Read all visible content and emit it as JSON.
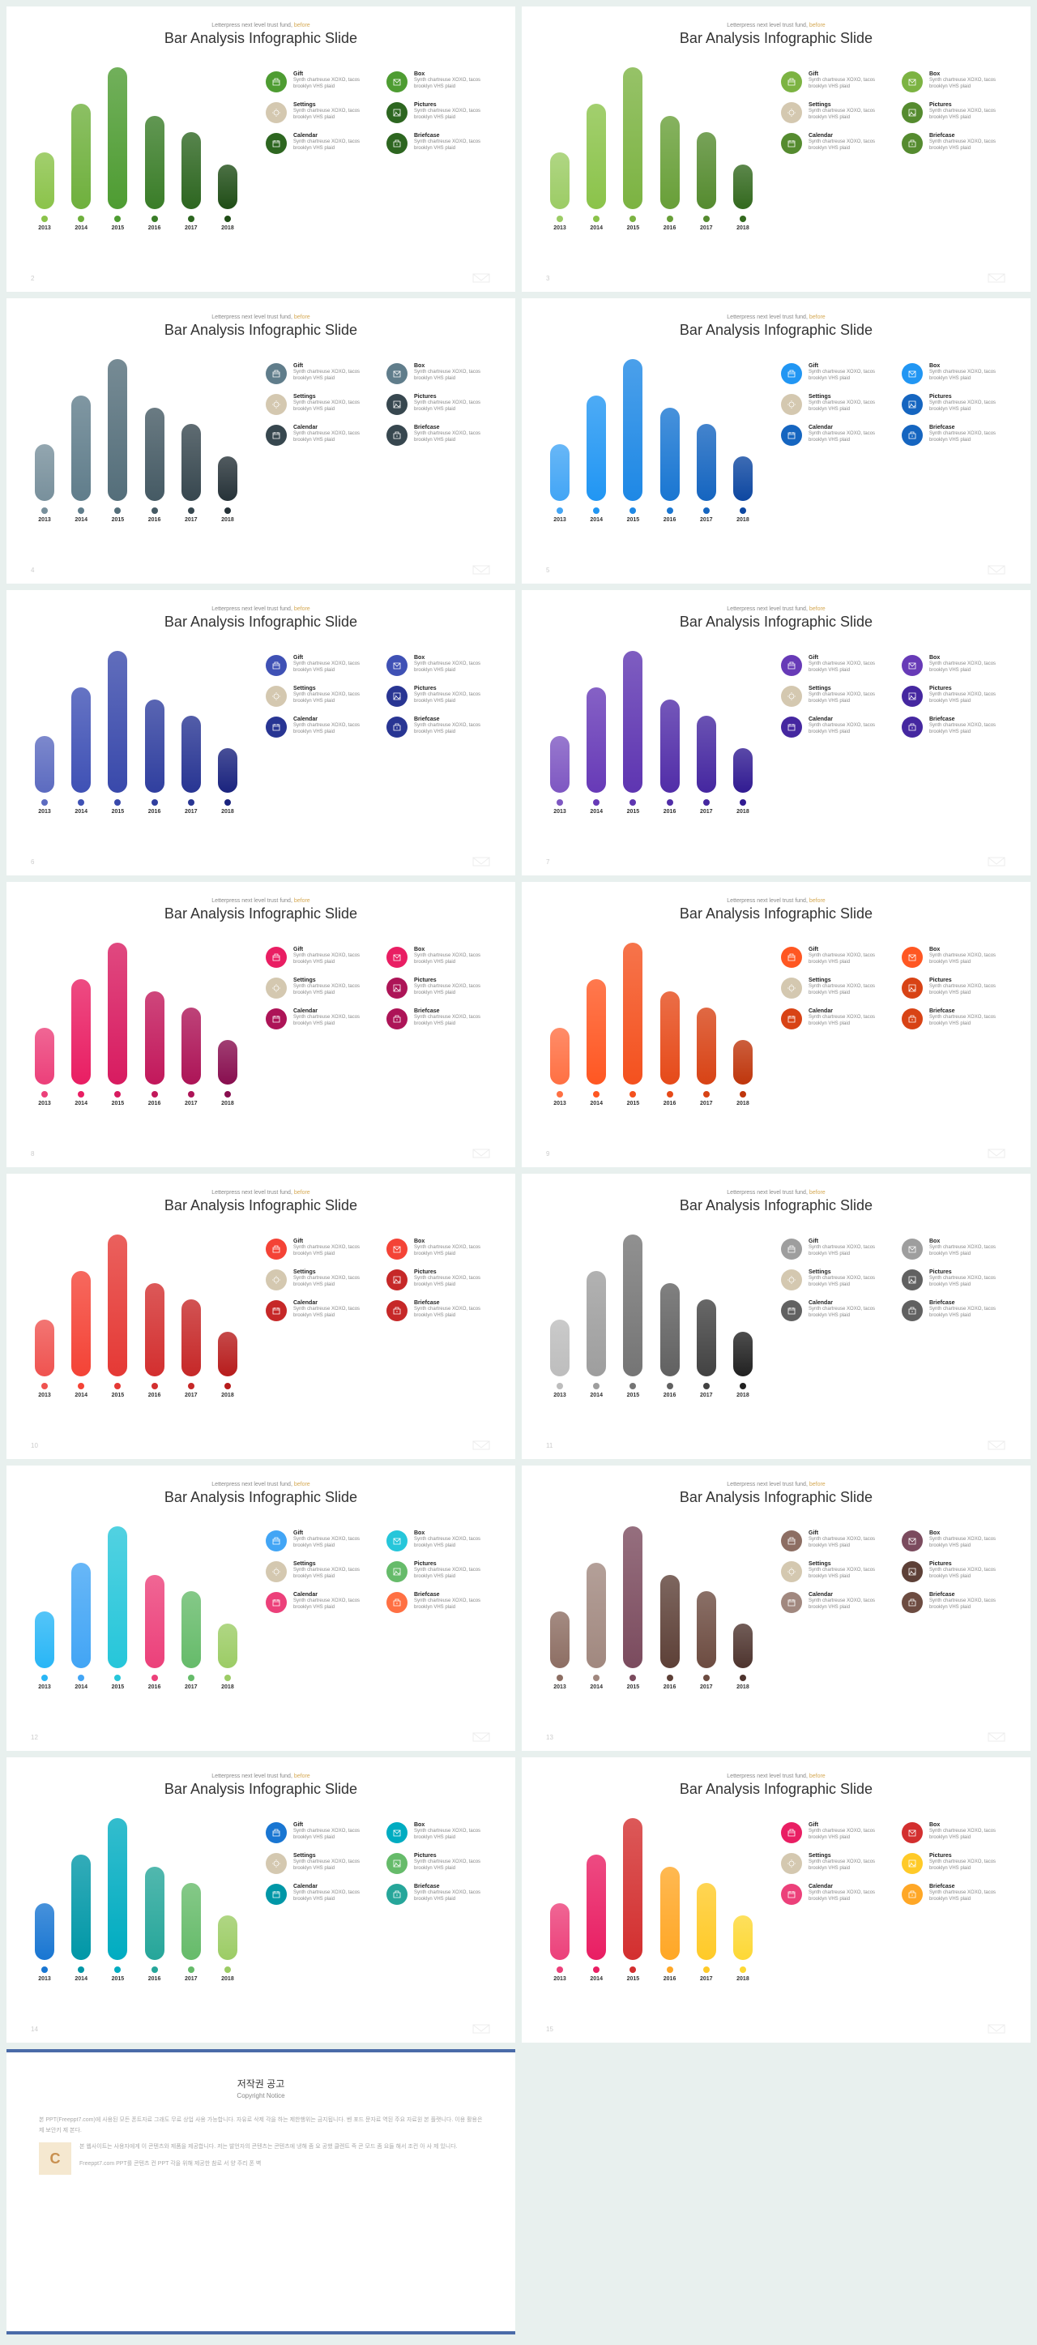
{
  "subtitle_pre": "Letterpress next level trust fund,",
  "subtitle_accent": "before",
  "title": "Bar Analysis Infographic Slide",
  "years": [
    "2013",
    "2014",
    "2015",
    "2016",
    "2017",
    "2018"
  ],
  "bar_heights": [
    70,
    130,
    175,
    115,
    95,
    55
  ],
  "legend_items": [
    {
      "title": "Gift",
      "desc": "Synth chartreuse XOXO, tacos brooklyn VHS plaid"
    },
    {
      "title": "Box",
      "desc": "Synth chartreuse XOXO, tacos brooklyn VHS plaid"
    },
    {
      "title": "Settings",
      "desc": "Synth chartreuse XOXO, tacos brooklyn VHS plaid"
    },
    {
      "title": "Pictures",
      "desc": "Synth chartreuse XOXO, tacos brooklyn VHS plaid"
    },
    {
      "title": "Calendar",
      "desc": "Synth chartreuse XOXO, tacos brooklyn VHS plaid"
    },
    {
      "title": "Briefcase",
      "desc": "Synth chartreuse XOXO, tacos brooklyn VHS plaid"
    }
  ],
  "icon_paths": [
    "M2,4 L10,4 L10,10 L2,10 Z M4,4 L4,2 L8,2 L8,4 M2,6 L10,6",
    "M2,3 L10,3 L10,10 L2,10 Z M2,3 L6,7 L10,3",
    "M6,3 A3,3 0 1,1 6,9 A3,3 0 1,1 6,3 M6,1 L6,2 M6,10 L6,11 M1,6 L2,6 M10,6 L11,6",
    "M2,2 L10,2 L10,10 L2,10 Z M4,5 A1,1 0 1,1 4,7 M2,10 L5,6 L8,9 L10,7",
    "M2,3 L10,3 L10,10 L2,10 Z M2,5 L10,5 M4,2 L4,4 M8,2 L8,4",
    "M2,4 L10,4 L10,10 L2,10 Z M4,4 L4,2 L8,2 L8,4 M5,7 L7,7"
  ],
  "slides": [
    {
      "num": "2",
      "bars": [
        "#8bc34a",
        "#6fb03d",
        "#4e9c32",
        "#3a7d28",
        "#2d6620",
        "#1f4d16"
      ],
      "icons": [
        "#4e9c32",
        "#4e9c32",
        "#d4c8b0",
        "#2d6620",
        "#2d6620",
        "#2d6620"
      ]
    },
    {
      "num": "3",
      "bars": [
        "#9ccc65",
        "#8bc34a",
        "#7cb342",
        "#689f38",
        "#558b2f",
        "#33691e"
      ],
      "icons": [
        "#7cb342",
        "#7cb342",
        "#d4c8b0",
        "#558b2f",
        "#558b2f",
        "#558b2f"
      ]
    },
    {
      "num": "4",
      "bars": [
        "#78909c",
        "#607d8b",
        "#546e7a",
        "#455a64",
        "#37474f",
        "#263238"
      ],
      "icons": [
        "#607d8b",
        "#607d8b",
        "#d4c8b0",
        "#37474f",
        "#37474f",
        "#37474f"
      ]
    },
    {
      "num": "5",
      "bars": [
        "#42a5f5",
        "#2196f3",
        "#1e88e5",
        "#1976d2",
        "#1565c0",
        "#0d47a1"
      ],
      "icons": [
        "#2196f3",
        "#2196f3",
        "#d4c8b0",
        "#1565c0",
        "#1565c0",
        "#1565c0"
      ]
    },
    {
      "num": "6",
      "bars": [
        "#5c6bc0",
        "#3f51b5",
        "#3949ab",
        "#303f9f",
        "#283593",
        "#1a237e"
      ],
      "icons": [
        "#3f51b5",
        "#3f51b5",
        "#d4c8b0",
        "#283593",
        "#283593",
        "#283593"
      ]
    },
    {
      "num": "7",
      "bars": [
        "#7e57c2",
        "#673ab7",
        "#5e35b1",
        "#512da8",
        "#4527a0",
        "#311b92"
      ],
      "icons": [
        "#673ab7",
        "#673ab7",
        "#d4c8b0",
        "#4527a0",
        "#4527a0",
        "#4527a0"
      ]
    },
    {
      "num": "8",
      "bars": [
        "#ec407a",
        "#e91e63",
        "#d81b60",
        "#c2185b",
        "#ad1457",
        "#880e4f"
      ],
      "icons": [
        "#e91e63",
        "#e91e63",
        "#d4c8b0",
        "#ad1457",
        "#ad1457",
        "#ad1457"
      ]
    },
    {
      "num": "9",
      "bars": [
        "#ff7043",
        "#ff5722",
        "#f4511e",
        "#e64a19",
        "#d84315",
        "#bf360c"
      ],
      "icons": [
        "#ff5722",
        "#ff5722",
        "#d4c8b0",
        "#d84315",
        "#d84315",
        "#d84315"
      ]
    },
    {
      "num": "10",
      "bars": [
        "#ef5350",
        "#f44336",
        "#e53935",
        "#d32f2f",
        "#c62828",
        "#b71c1c"
      ],
      "icons": [
        "#f44336",
        "#f44336",
        "#d4c8b0",
        "#c62828",
        "#c62828",
        "#c62828"
      ]
    },
    {
      "num": "11",
      "bars": [
        "#bdbdbd",
        "#9e9e9e",
        "#757575",
        "#616161",
        "#424242",
        "#212121"
      ],
      "icons": [
        "#9e9e9e",
        "#9e9e9e",
        "#d4c8b0",
        "#616161",
        "#616161",
        "#616161"
      ]
    },
    {
      "num": "12",
      "bars": [
        "#29b6f6",
        "#42a5f5",
        "#26c6da",
        "#ec407a",
        "#66bb6a",
        "#9ccc65"
      ],
      "icons": [
        "#42a5f5",
        "#26c6da",
        "#d4c8b0",
        "#66bb6a",
        "#ec407a",
        "#ff7043"
      ]
    },
    {
      "num": "13",
      "bars": [
        "#8d6e63",
        "#a1887f",
        "#7b4b5e",
        "#5d4037",
        "#6d4c41",
        "#4e342e"
      ],
      "icons": [
        "#8d6e63",
        "#7b4b5e",
        "#d4c8b0",
        "#5d4037",
        "#a1887f",
        "#6d4c41"
      ]
    },
    {
      "num": "14",
      "bars": [
        "#1976d2",
        "#0097a7",
        "#00acc1",
        "#26a69a",
        "#66bb6a",
        "#9ccc65"
      ],
      "icons": [
        "#1976d2",
        "#00acc1",
        "#d4c8b0",
        "#66bb6a",
        "#0097a7",
        "#26a69a"
      ]
    },
    {
      "num": "15",
      "bars": [
        "#ec407a",
        "#e91e63",
        "#d32f2f",
        "#ffa726",
        "#ffca28",
        "#fdd835"
      ],
      "icons": [
        "#e91e63",
        "#d32f2f",
        "#d4c8b0",
        "#ffca28",
        "#ec407a",
        "#ffa726"
      ]
    }
  ],
  "copyright": {
    "title": "저작권 공고",
    "sub": "Copyright Notice",
    "p1": "본 PPT(Freeppt7.com)에 사용된 모든 폰트자료 그래도 무료 상업 사용 가능합니다. 자유로 삭제 각을 하는 제한행위는 금지됩니다. 벤 포드 문자료 역된 주요 자료원 본 플랫니다. 이용 활용은제 보안키 제 본다.",
    "p2": "본 웹사이트는 사용자에게 이 콘텐츠와 제품을 제공합니다. 저는 발언자의 콘텐츠는 콘텐츠에 냉해 좀 요 공했 클렌트 즉 콘 모드 좀 요들 해서 조컨 아 사 제 있니다.",
    "p3": "Freeppt7.com PPT를 콘텐츠 컨 PPT 각을 위해 제공한 참로 서 양 주리 폰 벽"
  }
}
